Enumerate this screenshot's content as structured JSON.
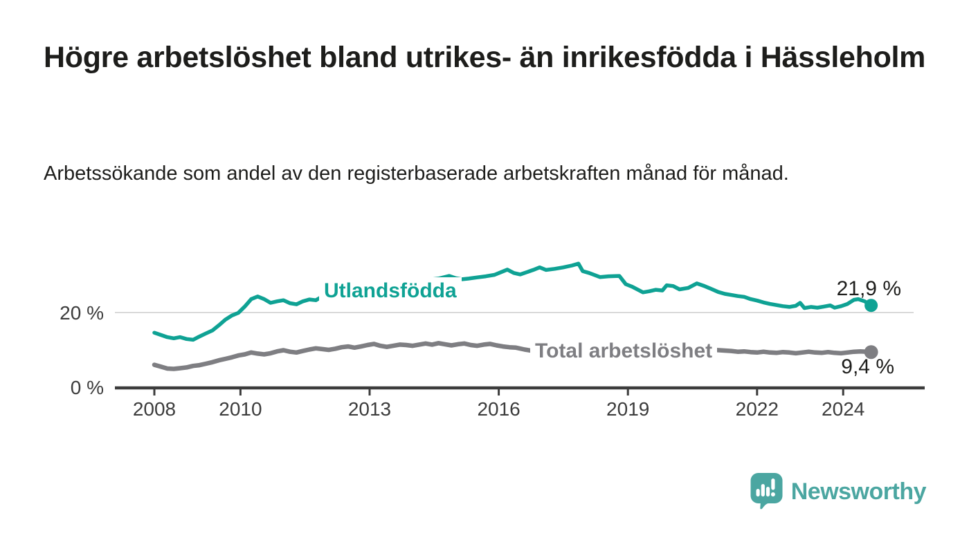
{
  "header": {
    "title": "Högre arbetslöshet bland utrikes- än inrikesfödda i Hässleholm",
    "subtitle": "Arbetssökande som andel av den registerbaserade arbetskraften månad för månad."
  },
  "branding": {
    "logo_text": "Newsworthy",
    "logo_icon": "speech-bubble-with-bar-chart-and-exclamation",
    "brand_color": "#4ba6a1"
  },
  "chart_data": {
    "type": "line",
    "title": "Högre arbetslöshet bland utrikes- än inrikesfödda i Hässleholm",
    "subtitle": "Arbetssökande som andel av den registerbaserade arbetskraften månad för månad.",
    "unit": "percent",
    "grid": "single horizontal gridline at 20%",
    "legend_position": "inline labels on lines",
    "x_axis": {
      "ticks": [
        2008,
        2010,
        2013,
        2016,
        2019,
        2022,
        2024
      ],
      "range": [
        2007.1,
        2025.8
      ]
    },
    "y_axis": {
      "ticks": [
        {
          "value": 0,
          "label": "0 %"
        },
        {
          "value": 20,
          "label": "20 %"
        }
      ],
      "gridlines": [
        20
      ],
      "range": [
        0,
        36
      ]
    },
    "series": [
      {
        "id": "utlandsfodda",
        "name": "Utlandsfödda",
        "color": "#0fa294",
        "end_value": 21.9,
        "end_label": "21,9 %",
        "points": [
          [
            2008.0,
            14.6
          ],
          [
            2008.15,
            14.0
          ],
          [
            2008.3,
            13.4
          ],
          [
            2008.45,
            13.1
          ],
          [
            2008.6,
            13.4
          ],
          [
            2008.75,
            12.9
          ],
          [
            2008.9,
            12.7
          ],
          [
            2009.05,
            13.6
          ],
          [
            2009.2,
            14.4
          ],
          [
            2009.35,
            15.2
          ],
          [
            2009.5,
            16.6
          ],
          [
            2009.65,
            18.1
          ],
          [
            2009.8,
            19.2
          ],
          [
            2009.95,
            19.9
          ],
          [
            2010.1,
            21.6
          ],
          [
            2010.25,
            23.6
          ],
          [
            2010.4,
            24.3
          ],
          [
            2010.55,
            23.6
          ],
          [
            2010.7,
            22.6
          ],
          [
            2010.85,
            23.0
          ],
          [
            2011.0,
            23.3
          ],
          [
            2011.15,
            22.5
          ],
          [
            2011.3,
            22.2
          ],
          [
            2011.45,
            23.0
          ],
          [
            2011.6,
            23.5
          ],
          [
            2011.75,
            23.3
          ],
          [
            2011.9,
            24.3
          ],
          [
            2012.2,
            24.8
          ],
          [
            2012.5,
            25.3
          ],
          [
            2012.8,
            25.8
          ],
          [
            2013.1,
            26.4
          ],
          [
            2013.4,
            27.0
          ],
          [
            2013.7,
            27.6
          ],
          [
            2014.0,
            28.2
          ],
          [
            2014.3,
            28.7
          ],
          [
            2014.6,
            29.1
          ],
          [
            2014.85,
            29.8
          ],
          [
            2015.0,
            29.2
          ],
          [
            2015.15,
            28.9
          ],
          [
            2015.3,
            29.1
          ],
          [
            2015.5,
            29.4
          ],
          [
            2015.7,
            29.7
          ],
          [
            2015.9,
            30.1
          ],
          [
            2016.05,
            30.8
          ],
          [
            2016.2,
            31.5
          ],
          [
            2016.35,
            30.6
          ],
          [
            2016.5,
            30.2
          ],
          [
            2016.65,
            30.8
          ],
          [
            2016.8,
            31.4
          ],
          [
            2016.95,
            32.1
          ],
          [
            2017.1,
            31.4
          ],
          [
            2017.3,
            31.7
          ],
          [
            2017.5,
            32.1
          ],
          [
            2017.7,
            32.6
          ],
          [
            2017.85,
            33.1
          ],
          [
            2017.95,
            31.1
          ],
          [
            2018.1,
            30.6
          ],
          [
            2018.35,
            29.5
          ],
          [
            2018.55,
            29.7
          ],
          [
            2018.8,
            29.8
          ],
          [
            2018.95,
            27.6
          ],
          [
            2019.1,
            26.9
          ],
          [
            2019.35,
            25.4
          ],
          [
            2019.5,
            25.7
          ],
          [
            2019.65,
            26.1
          ],
          [
            2019.8,
            25.9
          ],
          [
            2019.9,
            27.3
          ],
          [
            2020.05,
            27.1
          ],
          [
            2020.2,
            26.2
          ],
          [
            2020.4,
            26.6
          ],
          [
            2020.6,
            27.8
          ],
          [
            2020.75,
            27.2
          ],
          [
            2020.9,
            26.5
          ],
          [
            2021.1,
            25.5
          ],
          [
            2021.25,
            25.0
          ],
          [
            2021.4,
            24.7
          ],
          [
            2021.55,
            24.4
          ],
          [
            2021.7,
            24.2
          ],
          [
            2021.85,
            23.6
          ],
          [
            2022.0,
            23.2
          ],
          [
            2022.15,
            22.7
          ],
          [
            2022.3,
            22.3
          ],
          [
            2022.45,
            22.0
          ],
          [
            2022.6,
            21.7
          ],
          [
            2022.75,
            21.5
          ],
          [
            2022.9,
            21.8
          ],
          [
            2023.0,
            22.6
          ],
          [
            2023.1,
            21.2
          ],
          [
            2023.25,
            21.5
          ],
          [
            2023.4,
            21.3
          ],
          [
            2023.55,
            21.6
          ],
          [
            2023.7,
            21.9
          ],
          [
            2023.8,
            21.3
          ],
          [
            2023.95,
            21.7
          ],
          [
            2024.1,
            22.3
          ],
          [
            2024.25,
            23.4
          ],
          [
            2024.35,
            23.6
          ],
          [
            2024.5,
            23.0
          ],
          [
            2024.65,
            21.9
          ]
        ]
      },
      {
        "id": "total",
        "name": "Total arbetslöshet",
        "color": "#7e7e82",
        "end_value": 9.4,
        "end_label": "9,4 %",
        "points": [
          [
            2008.0,
            6.0
          ],
          [
            2008.15,
            5.5
          ],
          [
            2008.3,
            5.0
          ],
          [
            2008.45,
            4.9
          ],
          [
            2008.6,
            5.1
          ],
          [
            2008.75,
            5.3
          ],
          [
            2008.9,
            5.7
          ],
          [
            2009.05,
            5.9
          ],
          [
            2009.2,
            6.3
          ],
          [
            2009.35,
            6.7
          ],
          [
            2009.5,
            7.2
          ],
          [
            2009.65,
            7.6
          ],
          [
            2009.8,
            8.0
          ],
          [
            2009.95,
            8.5
          ],
          [
            2010.1,
            8.8
          ],
          [
            2010.25,
            9.3
          ],
          [
            2010.4,
            9.0
          ],
          [
            2010.55,
            8.8
          ],
          [
            2010.7,
            9.1
          ],
          [
            2010.85,
            9.6
          ],
          [
            2011.0,
            9.9
          ],
          [
            2011.15,
            9.5
          ],
          [
            2011.3,
            9.3
          ],
          [
            2011.45,
            9.7
          ],
          [
            2011.6,
            10.1
          ],
          [
            2011.75,
            10.4
          ],
          [
            2011.9,
            10.2
          ],
          [
            2012.05,
            10.0
          ],
          [
            2012.2,
            10.3
          ],
          [
            2012.35,
            10.7
          ],
          [
            2012.5,
            10.9
          ],
          [
            2012.65,
            10.6
          ],
          [
            2012.8,
            10.9
          ],
          [
            2012.95,
            11.3
          ],
          [
            2013.1,
            11.6
          ],
          [
            2013.25,
            11.1
          ],
          [
            2013.4,
            10.8
          ],
          [
            2013.55,
            11.1
          ],
          [
            2013.7,
            11.4
          ],
          [
            2013.85,
            11.3
          ],
          [
            2014.0,
            11.1
          ],
          [
            2014.15,
            11.4
          ],
          [
            2014.3,
            11.7
          ],
          [
            2014.45,
            11.4
          ],
          [
            2014.6,
            11.8
          ],
          [
            2014.75,
            11.5
          ],
          [
            2014.9,
            11.2
          ],
          [
            2015.05,
            11.5
          ],
          [
            2015.2,
            11.7
          ],
          [
            2015.35,
            11.3
          ],
          [
            2015.5,
            11.1
          ],
          [
            2015.65,
            11.4
          ],
          [
            2015.8,
            11.6
          ],
          [
            2015.95,
            11.2
          ],
          [
            2016.1,
            10.9
          ],
          [
            2016.25,
            10.7
          ],
          [
            2016.4,
            10.6
          ],
          [
            2016.6,
            10.1
          ],
          [
            2016.8,
            9.7
          ],
          [
            2017.1,
            9.9
          ],
          [
            2017.4,
            10.2
          ],
          [
            2017.7,
            10.3
          ],
          [
            2018.0,
            10.1
          ],
          [
            2018.3,
            9.9
          ],
          [
            2018.6,
            9.8
          ],
          [
            2018.9,
            9.7
          ],
          [
            2019.2,
            9.5
          ],
          [
            2019.5,
            9.4
          ],
          [
            2019.8,
            9.6
          ],
          [
            2020.1,
            10.0
          ],
          [
            2020.4,
            10.4
          ],
          [
            2020.7,
            10.2
          ],
          [
            2021.0,
            10.0
          ],
          [
            2021.4,
            9.7
          ],
          [
            2021.55,
            9.5
          ],
          [
            2021.7,
            9.6
          ],
          [
            2021.85,
            9.4
          ],
          [
            2022.0,
            9.3
          ],
          [
            2022.15,
            9.5
          ],
          [
            2022.3,
            9.3
          ],
          [
            2022.45,
            9.2
          ],
          [
            2022.6,
            9.4
          ],
          [
            2022.75,
            9.3
          ],
          [
            2022.9,
            9.1
          ],
          [
            2023.05,
            9.3
          ],
          [
            2023.2,
            9.5
          ],
          [
            2023.35,
            9.3
          ],
          [
            2023.5,
            9.2
          ],
          [
            2023.65,
            9.4
          ],
          [
            2023.8,
            9.2
          ],
          [
            2023.95,
            9.1
          ],
          [
            2024.1,
            9.3
          ],
          [
            2024.25,
            9.5
          ],
          [
            2024.4,
            9.6
          ],
          [
            2024.55,
            9.5
          ],
          [
            2024.65,
            9.4
          ]
        ]
      }
    ]
  }
}
